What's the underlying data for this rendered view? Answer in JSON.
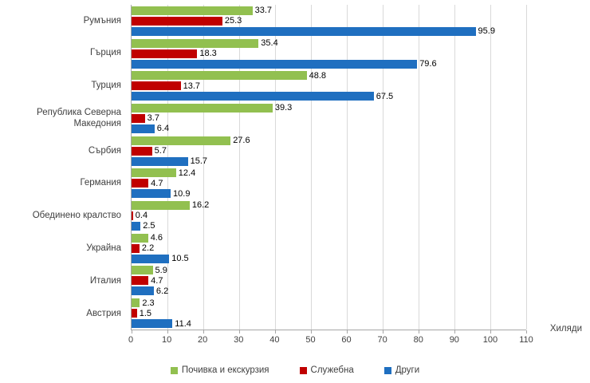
{
  "chart_data": {
    "type": "bar",
    "orientation": "horizontal",
    "categories": [
      "Румъния",
      "Гърция",
      "Турция",
      "Република Северна Македония",
      "Сърбия",
      "Германия",
      "Обединено кралство",
      "Украйна",
      "Италия",
      "Австрия"
    ],
    "series": [
      {
        "name": "Почивка и екскурзия",
        "color": "#92C050",
        "values": [
          33.7,
          35.4,
          48.8,
          39.3,
          27.6,
          12.4,
          16.2,
          4.6,
          5.9,
          2.3
        ]
      },
      {
        "name": "Служебна",
        "color": "#C00000",
        "values": [
          25.3,
          18.3,
          13.7,
          3.7,
          5.7,
          4.7,
          0.4,
          2.2,
          4.7,
          1.5
        ]
      },
      {
        "name": "Други",
        "color": "#1F6FC0",
        "values": [
          95.9,
          79.6,
          67.5,
          6.4,
          15.7,
          10.9,
          2.5,
          10.5,
          6.2,
          11.4
        ]
      }
    ],
    "xlim": [
      0,
      110
    ],
    "xticks": [
      0,
      10,
      20,
      30,
      40,
      50,
      60,
      70,
      80,
      90,
      100,
      110
    ],
    "axis_unit_label": "Хиляди",
    "grid": "vertical",
    "legend_position": "bottom",
    "title": "",
    "xlabel": "Хиляди",
    "ylabel": ""
  }
}
